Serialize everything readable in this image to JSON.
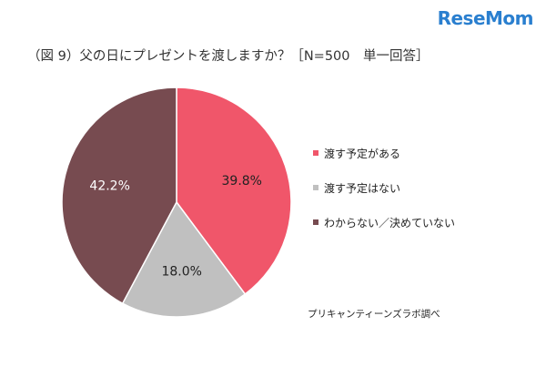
{
  "logo": {
    "text": "ReseMom"
  },
  "chart_data": {
    "type": "pie",
    "title": "（図 9）父の日にプレゼントを渡しますか？［N=500　単一回答］",
    "slices": [
      {
        "label": "渡す予定がある",
        "value": 39.8,
        "display": "39.8%",
        "color": "#f0566a"
      },
      {
        "label": "渡す予定はない",
        "value": 18.0,
        "display": "18.0%",
        "color": "#c0c0c0"
      },
      {
        "label": "わからない／決めていない",
        "value": 42.2,
        "display": "42.2%",
        "color": "#774b50"
      }
    ],
    "legend_position": "right",
    "source": "プリキャンティーンズラボ調べ"
  }
}
